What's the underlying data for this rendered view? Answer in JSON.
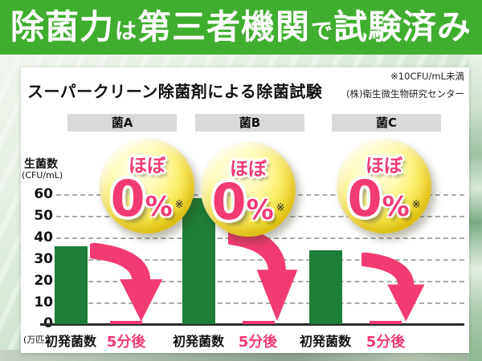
{
  "colors": {
    "accent_green": "#3fae2e",
    "bar_green": "#1e7d38",
    "pink": "#f23b72",
    "label_gray": "#d9d9d9"
  },
  "header": {
    "parts": [
      {
        "text": "除菌力"
      },
      {
        "text": "は"
      },
      {
        "text": "第三者機関"
      },
      {
        "text": "で"
      },
      {
        "text": "試験済み"
      }
    ]
  },
  "panel": {
    "note_top": "※10CFU/mL未満",
    "title": "スーパークリーン除菌剤による除菌試験",
    "source": "(株)衛生微生物研究センター",
    "y_axis": {
      "title": "生菌数",
      "unit": "(CFU/mL)",
      "ticks": [
        "60",
        "50",
        "40",
        "30",
        "20",
        "10",
        "0"
      ],
      "bottom_unit": "(万匹)"
    },
    "series_labels": {
      "initial": "初発菌数",
      "after": "5分後"
    },
    "badge": {
      "line1": "ほぼ",
      "value": "0",
      "percent": "%",
      "note": "※"
    },
    "groups": [
      {
        "label": "菌A"
      },
      {
        "label": "菌B"
      },
      {
        "label": "菌C"
      }
    ]
  },
  "chart_data": {
    "type": "bar",
    "title": "スーパークリーン除菌剤による除菌試験",
    "note": "※10CFU/mL未満",
    "source": "(株)衛生微生物研究センター",
    "ylabel": "生菌数(CFU/mL)",
    "y_bottom_unit": "万匹",
    "ylim": [
      0,
      65
    ],
    "yticks": [
      0,
      10,
      20,
      30,
      40,
      50,
      60
    ],
    "grid": "horizontal-dashed",
    "categories": [
      "菌A",
      "菌B",
      "菌C"
    ],
    "series": [
      {
        "name": "初発菌数",
        "color": "#1e7d38",
        "values": [
          36,
          58,
          34
        ]
      },
      {
        "name": "5分後",
        "color": "#f23b72",
        "values": [
          1.5,
          1.5,
          1.5
        ],
        "annotation": "ほぼ0%(※10CFU/mL未満)"
      }
    ]
  }
}
